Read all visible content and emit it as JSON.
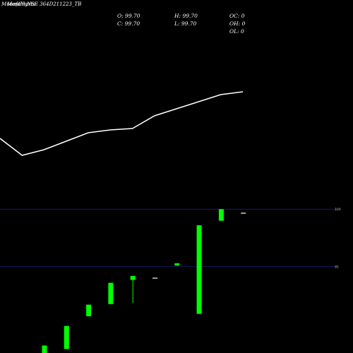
{
  "header": {
    "title_overlap": [
      "Munafa",
      "Monthly",
      "Charts",
      "NSE 364D211223_TB"
    ]
  },
  "ohlc": {
    "open": "O: 99.70",
    "close": "C: 99.70",
    "high": "H: 99.70",
    "low": "L: 99.70",
    "oc": "OC: 0",
    "oh": "OH: 0",
    "ol": "OL: 0"
  },
  "colors": {
    "background": "#000000",
    "up": "#00ff00",
    "line": "#ffffff",
    "grid": "#1a237e",
    "doji": "#cccccc"
  },
  "chart_data": [
    {
      "type": "line",
      "title": "",
      "x": [
        1,
        2,
        3,
        4,
        5,
        6,
        7,
        8,
        9,
        10,
        11,
        12
      ],
      "values": [
        94.1,
        93.5,
        93.7,
        94.0,
        94.3,
        94.4,
        94.45,
        94.9,
        95.15,
        95.4,
        95.65,
        95.75
      ],
      "ylim": [
        92.5,
        97.5
      ]
    },
    {
      "type": "candlestick",
      "y_ticks": [
        {
          "label": "100",
          "value": 100
        },
        {
          "label": "95",
          "value": 95
        }
      ],
      "ylim": [
        87.5,
        101
      ],
      "candles": [
        {
          "open": 87.5,
          "high": 88.15,
          "low": 87.5,
          "close": 88.15,
          "color": "#00ff00"
        },
        {
          "open": 87.85,
          "high": 89.85,
          "low": 87.85,
          "close": 89.85,
          "color": "#00ff00"
        },
        {
          "open": 90.7,
          "high": 91.7,
          "low": 90.7,
          "close": 91.7,
          "color": "#00ff00"
        },
        {
          "open": 91.75,
          "high": 93.6,
          "low": 91.75,
          "close": 93.6,
          "color": "#00ff00"
        },
        {
          "open": 93.85,
          "high": 94.2,
          "low": 91.85,
          "close": 94.2,
          "color": "#00ff00"
        },
        {
          "open": 94.05,
          "high": 94.05,
          "low": 94.05,
          "close": 94.05,
          "color": "#cccccc"
        },
        {
          "open": 95.1,
          "high": 95.3,
          "low": 95.1,
          "close": 95.3,
          "color": "#00ff00"
        },
        {
          "open": 90.9,
          "high": 98.6,
          "low": 90.9,
          "close": 98.6,
          "color": "#00ff00"
        },
        {
          "open": 99.0,
          "high": 100.0,
          "low": 99.0,
          "close": 100.0,
          "color": "#00ff00"
        },
        {
          "open": 99.7,
          "high": 99.7,
          "low": 99.7,
          "close": 99.7,
          "color": "#cccccc"
        }
      ]
    }
  ]
}
